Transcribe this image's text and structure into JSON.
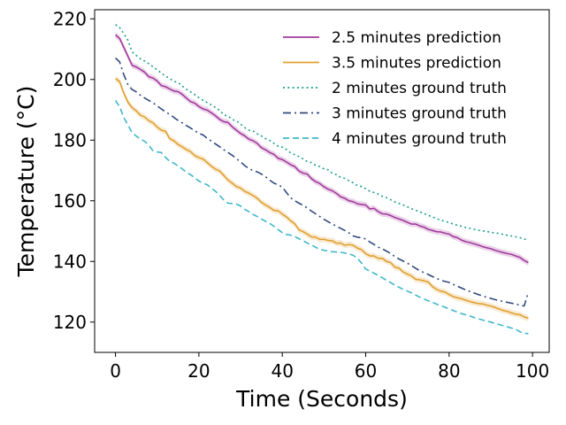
{
  "chart_data": {
    "type": "line",
    "title": "",
    "xlabel": "Time (Seconds)",
    "ylabel": "Temperature (°C)",
    "xlim": [
      -5,
      104
    ],
    "ylim": [
      110,
      223
    ],
    "x_ticks": [
      0,
      20,
      40,
      60,
      80,
      100
    ],
    "y_ticks": [
      120,
      140,
      160,
      180,
      200,
      220
    ],
    "x_tick_labels": [
      "0",
      "20",
      "40",
      "60",
      "80",
      "100"
    ],
    "y_tick_labels": [
      "120",
      "140",
      "160",
      "180",
      "200",
      "220"
    ],
    "grid": false,
    "legend_position": "top-right",
    "series": [
      {
        "name": "2.5 minutes prediction",
        "color": "#a23a9c",
        "style": "solid",
        "band": true,
        "x": [
          0,
          1,
          2,
          3,
          4,
          5,
          6,
          7,
          8,
          9,
          10,
          11,
          12,
          13,
          14,
          15,
          16,
          17,
          18,
          19,
          20,
          21,
          22,
          23,
          24,
          25,
          26,
          27,
          28,
          29,
          30,
          31,
          32,
          33,
          34,
          35,
          36,
          37,
          38,
          39,
          40,
          41,
          42,
          43,
          44,
          45,
          46,
          47,
          48,
          49,
          50,
          51,
          52,
          53,
          54,
          55,
          56,
          57,
          58,
          59,
          60,
          61,
          62,
          63,
          64,
          65,
          66,
          67,
          68,
          69,
          70,
          71,
          72,
          73,
          74,
          75,
          76,
          77,
          78,
          79,
          80,
          81,
          82,
          83,
          84,
          85,
          86,
          87,
          88,
          89,
          90,
          91,
          92,
          93,
          94,
          95,
          96,
          97,
          98,
          99
        ],
        "values": [
          214.7,
          213.5,
          210.6,
          207.6,
          204.7,
          204.1,
          203.3,
          202.4,
          200.9,
          200.5,
          199.5,
          198.0,
          197.6,
          196.9,
          196.2,
          196.0,
          195.1,
          193.9,
          192.7,
          192.2,
          191.1,
          190.3,
          189.9,
          189.0,
          188.0,
          186.8,
          186.1,
          185.8,
          184.4,
          183.3,
          182.2,
          181.4,
          180.3,
          179.8,
          178.9,
          177.5,
          176.8,
          175.9,
          175.3,
          174.0,
          173.6,
          172.8,
          171.9,
          171.3,
          169.8,
          169.1,
          168.8,
          167.3,
          166.3,
          165.7,
          164.6,
          163.8,
          163.3,
          162.4,
          161.3,
          160.8,
          160.0,
          159.7,
          159.0,
          158.8,
          158.6,
          157.3,
          157.5,
          156.4,
          155.7,
          155.6,
          155.1,
          154.5,
          154.0,
          153.5,
          152.9,
          152.3,
          152.3,
          151.7,
          151.3,
          150.6,
          150.2,
          149.8,
          149.7,
          149.3,
          149.0,
          148.2,
          147.8,
          147.0,
          146.5,
          146.2,
          145.8,
          145.4,
          144.9,
          144.5,
          144.2,
          143.7,
          143.3,
          142.9,
          142.6,
          142.3,
          141.8,
          141.3,
          140.3,
          139.6
        ]
      },
      {
        "name": "3.5 minutes prediction",
        "color": "#e0a030",
        "style": "solid",
        "band": true,
        "x": [
          0,
          1,
          2,
          3,
          4,
          5,
          6,
          7,
          8,
          9,
          10,
          11,
          12,
          13,
          14,
          15,
          16,
          17,
          18,
          19,
          20,
          21,
          22,
          23,
          24,
          25,
          26,
          27,
          28,
          29,
          30,
          31,
          32,
          33,
          34,
          35,
          36,
          37,
          38,
          39,
          40,
          41,
          42,
          43,
          44,
          45,
          46,
          47,
          48,
          49,
          50,
          51,
          52,
          53,
          54,
          55,
          56,
          57,
          58,
          59,
          60,
          61,
          62,
          63,
          64,
          65,
          66,
          67,
          68,
          69,
          70,
          71,
          72,
          73,
          74,
          75,
          76,
          77,
          78,
          79,
          80,
          81,
          82,
          83,
          84,
          85,
          86,
          87,
          88,
          89,
          90,
          91,
          92,
          93,
          94,
          95,
          96,
          97,
          98,
          99
        ],
        "values": [
          200.3,
          199.3,
          195.5,
          192.5,
          190.7,
          189.6,
          188.2,
          187.6,
          186.4,
          185.7,
          184.3,
          183.3,
          182.9,
          180.5,
          179.8,
          178.6,
          177.8,
          176.9,
          176.2,
          174.9,
          174.2,
          173.8,
          172.6,
          171.4,
          170.4,
          169.8,
          168.3,
          166.8,
          165.8,
          164.7,
          164.2,
          163.1,
          162.5,
          161.7,
          160.8,
          159.5,
          158.6,
          157.8,
          156.8,
          156.7,
          155.6,
          154.7,
          153.4,
          152.4,
          150.4,
          149.8,
          149.0,
          148.1,
          148.0,
          147.3,
          147.3,
          146.9,
          146.8,
          146.0,
          146.1,
          145.3,
          145.6,
          145.3,
          144.4,
          143.9,
          142.6,
          141.8,
          141.8,
          141.0,
          141.0,
          140.0,
          139.6,
          138.1,
          137.8,
          136.5,
          135.8,
          135.2,
          134.1,
          133.9,
          133.6,
          133.2,
          131.7,
          130.8,
          130.2,
          129.9,
          129.1,
          128.4,
          128.0,
          127.7,
          127.2,
          126.8,
          126.4,
          126.1,
          126.0,
          125.6,
          125.3,
          124.8,
          124.3,
          123.8,
          123.5,
          123.0,
          122.6,
          122.4,
          121.7,
          121.3
        ]
      },
      {
        "name": "2 minutes ground truth",
        "color": "#1a9e8c",
        "style": "dotted",
        "band": false,
        "x": [
          0,
          1,
          2,
          3,
          4,
          5,
          6,
          7,
          8,
          9,
          10,
          11,
          12,
          13,
          14,
          15,
          16,
          17,
          18,
          19,
          20,
          21,
          22,
          23,
          24,
          25,
          26,
          27,
          28,
          29,
          30,
          31,
          32,
          33,
          34,
          35,
          36,
          37,
          38,
          39,
          40,
          41,
          42,
          43,
          44,
          45,
          46,
          47,
          48,
          49,
          50,
          51,
          52,
          53,
          54,
          55,
          56,
          57,
          58,
          59,
          60,
          61,
          62,
          63,
          64,
          65,
          66,
          67,
          68,
          69,
          70,
          71,
          72,
          73,
          74,
          75,
          76,
          77,
          78,
          79,
          80,
          81,
          82,
          83,
          84,
          85,
          86,
          87,
          88,
          89,
          90,
          91,
          92,
          93,
          94,
          95,
          96,
          97,
          98,
          99
        ],
        "values": [
          218.1,
          217.1,
          215.1,
          212.9,
          209.1,
          207.9,
          206.8,
          206.1,
          205.2,
          204.2,
          203.2,
          202.1,
          201.1,
          200.3,
          199.4,
          199.0,
          197.9,
          196.8,
          195.9,
          195.0,
          194.0,
          193.1,
          192.4,
          191.6,
          190.7,
          189.8,
          188.3,
          187.9,
          186.8,
          186.3,
          185.3,
          184.1,
          183.3,
          183.0,
          182.1,
          181.4,
          180.5,
          179.9,
          178.9,
          178.0,
          177.7,
          176.9,
          175.8,
          175.2,
          174.6,
          173.8,
          172.9,
          172.6,
          171.7,
          171.3,
          170.5,
          170.2,
          169.1,
          168.6,
          167.7,
          167.4,
          166.6,
          165.9,
          165.0,
          164.7,
          164.0,
          163.1,
          162.7,
          162.2,
          161.5,
          161.0,
          160.3,
          159.6,
          159.1,
          158.6,
          158.0,
          157.4,
          156.9,
          156.3,
          155.8,
          155.2,
          154.7,
          154.1,
          153.6,
          153.2,
          152.8,
          152.3,
          151.9,
          151.6,
          151.2,
          150.9,
          150.6,
          150.3,
          150.1,
          149.9,
          149.6,
          149.4,
          149.2,
          148.9,
          148.6,
          148.4,
          148.1,
          147.8,
          147.4,
          147.0
        ]
      },
      {
        "name": "3 minutes ground truth",
        "color": "#304a7e",
        "style": "dashdot",
        "band": false,
        "x": [
          0,
          1,
          2,
          3,
          4,
          5,
          6,
          7,
          8,
          9,
          10,
          11,
          12,
          13,
          14,
          15,
          16,
          17,
          18,
          19,
          20,
          21,
          22,
          23,
          24,
          25,
          26,
          27,
          28,
          29,
          30,
          31,
          32,
          33,
          34,
          35,
          36,
          37,
          38,
          39,
          40,
          41,
          42,
          43,
          44,
          45,
          46,
          47,
          48,
          49,
          50,
          51,
          52,
          53,
          54,
          55,
          56,
          57,
          58,
          59,
          60,
          61,
          62,
          63,
          64,
          65,
          66,
          67,
          68,
          69,
          70,
          71,
          72,
          73,
          74,
          75,
          76,
          77,
          78,
          79,
          80,
          81,
          82,
          83,
          84,
          85,
          86,
          87,
          88,
          89,
          90,
          91,
          92,
          93,
          94,
          95,
          96,
          97,
          98,
          99
        ],
        "values": [
          207.1,
          205.8,
          201.6,
          198.3,
          196.7,
          195.9,
          194.8,
          193.9,
          193.1,
          192.3,
          191.3,
          190.3,
          189.3,
          188.5,
          187.5,
          186.5,
          185.7,
          184.8,
          184.0,
          183.1,
          182.2,
          181.7,
          180.6,
          179.7,
          178.7,
          177.8,
          176.8,
          175.9,
          175.0,
          173.9,
          172.8,
          171.6,
          170.6,
          170.0,
          169.5,
          168.8,
          167.9,
          166.8,
          165.8,
          165.3,
          164.5,
          162.7,
          161.0,
          160.0,
          159.2,
          158.5,
          157.6,
          156.6,
          155.7,
          154.8,
          153.9,
          153.1,
          152.3,
          151.6,
          150.9,
          150.2,
          149.4,
          148.4,
          148.0,
          147.8,
          147.4,
          146.4,
          145.6,
          144.7,
          144.1,
          143.4,
          142.6,
          141.6,
          140.8,
          140.1,
          139.4,
          138.6,
          137.7,
          136.9,
          136.3,
          135.7,
          135.0,
          134.4,
          133.8,
          133.4,
          133.1,
          132.4,
          131.8,
          131.2,
          130.6,
          130.1,
          129.6,
          129.1,
          128.6,
          128.2,
          127.8,
          127.4,
          127.1,
          126.8,
          126.5,
          126.2,
          125.9,
          125.6,
          125.3,
          129.8
        ]
      },
      {
        "name": "4 minutes ground truth",
        "color": "#3fb8c8",
        "style": "dashed",
        "band": false,
        "x": [
          0,
          1,
          2,
          3,
          4,
          5,
          6,
          7,
          8,
          9,
          10,
          11,
          12,
          13,
          14,
          15,
          16,
          17,
          18,
          19,
          20,
          21,
          22,
          23,
          24,
          25,
          26,
          27,
          28,
          29,
          30,
          31,
          32,
          33,
          34,
          35,
          36,
          37,
          38,
          39,
          40,
          41,
          42,
          43,
          44,
          45,
          46,
          47,
          48,
          49,
          50,
          51,
          52,
          53,
          54,
          55,
          56,
          57,
          58,
          59,
          60,
          61,
          62,
          63,
          64,
          65,
          66,
          67,
          68,
          69,
          70,
          71,
          72,
          73,
          74,
          75,
          76,
          77,
          78,
          79,
          80,
          81,
          82,
          83,
          84,
          85,
          86,
          87,
          88,
          89,
          90,
          91,
          92,
          93,
          94,
          95,
          96,
          97,
          98,
          99
        ],
        "values": [
          193.1,
          191.0,
          187.5,
          184.9,
          182.5,
          181.3,
          180.3,
          179.6,
          178.3,
          176.5,
          176.1,
          175.9,
          174.3,
          173.0,
          172.4,
          171.5,
          170.5,
          169.4,
          168.6,
          167.6,
          166.5,
          165.8,
          165.3,
          164.2,
          163.1,
          161.7,
          160.2,
          159.2,
          159.1,
          158.9,
          158.3,
          157.2,
          156.4,
          155.5,
          154.8,
          154.0,
          153.2,
          152.5,
          151.6,
          150.5,
          149.5,
          148.9,
          148.7,
          148.2,
          147.5,
          146.8,
          146.1,
          145.4,
          144.7,
          144.0,
          143.7,
          143.4,
          143.2,
          143.1,
          143.0,
          142.8,
          142.5,
          142.0,
          141.0,
          139.5,
          137.5,
          136.8,
          136.1,
          135.4,
          134.6,
          133.8,
          133.0,
          132.2,
          131.5,
          130.8,
          130.2,
          129.6,
          128.9,
          128.2,
          127.6,
          127.0,
          126.5,
          125.9,
          125.4,
          124.9,
          124.3,
          123.8,
          123.3,
          122.8,
          122.4,
          122.0,
          121.5,
          121.1,
          120.7,
          120.3,
          120.0,
          119.6,
          119.2,
          118.8,
          118.4,
          118.0,
          117.6,
          116.8,
          116.3,
          116.2
        ]
      }
    ]
  }
}
